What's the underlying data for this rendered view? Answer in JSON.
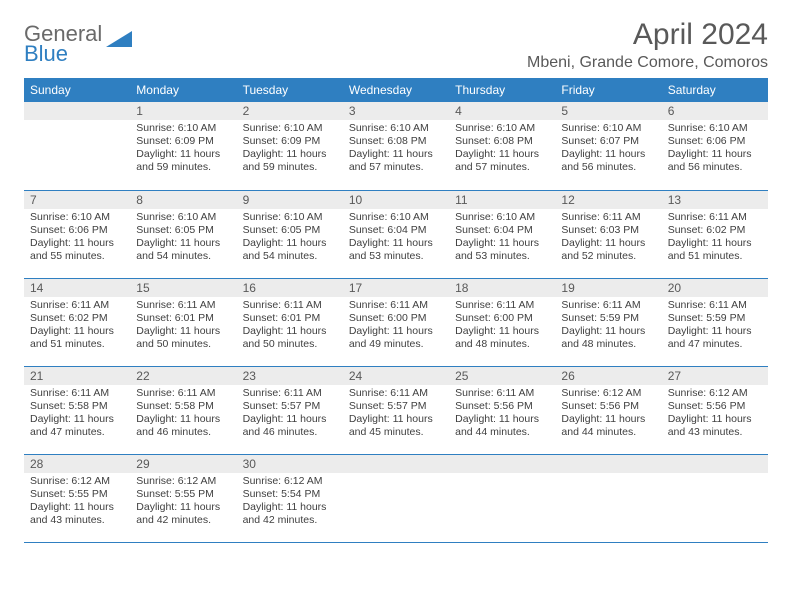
{
  "logo": {
    "word1": "General",
    "word2": "Blue"
  },
  "title": "April 2024",
  "location": "Mbeni, Grande Comore, Comoros",
  "colors": {
    "header_bg": "#2f7fc1",
    "header_fg": "#ffffff",
    "daynum_bg": "#ececec",
    "border": "#2f7fc1",
    "text": "#404040",
    "title": "#595959"
  },
  "weekdays": [
    "Sunday",
    "Monday",
    "Tuesday",
    "Wednesday",
    "Thursday",
    "Friday",
    "Saturday"
  ],
  "weeks": [
    [
      {
        "date": "",
        "lines": []
      },
      {
        "date": "1",
        "lines": [
          "Sunrise: 6:10 AM",
          "Sunset: 6:09 PM",
          "Daylight: 11 hours and 59 minutes."
        ]
      },
      {
        "date": "2",
        "lines": [
          "Sunrise: 6:10 AM",
          "Sunset: 6:09 PM",
          "Daylight: 11 hours and 59 minutes."
        ]
      },
      {
        "date": "3",
        "lines": [
          "Sunrise: 6:10 AM",
          "Sunset: 6:08 PM",
          "Daylight: 11 hours and 57 minutes."
        ]
      },
      {
        "date": "4",
        "lines": [
          "Sunrise: 6:10 AM",
          "Sunset: 6:08 PM",
          "Daylight: 11 hours and 57 minutes."
        ]
      },
      {
        "date": "5",
        "lines": [
          "Sunrise: 6:10 AM",
          "Sunset: 6:07 PM",
          "Daylight: 11 hours and 56 minutes."
        ]
      },
      {
        "date": "6",
        "lines": [
          "Sunrise: 6:10 AM",
          "Sunset: 6:06 PM",
          "Daylight: 11 hours and 56 minutes."
        ]
      }
    ],
    [
      {
        "date": "7",
        "lines": [
          "Sunrise: 6:10 AM",
          "Sunset: 6:06 PM",
          "Daylight: 11 hours and 55 minutes."
        ]
      },
      {
        "date": "8",
        "lines": [
          "Sunrise: 6:10 AM",
          "Sunset: 6:05 PM",
          "Daylight: 11 hours and 54 minutes."
        ]
      },
      {
        "date": "9",
        "lines": [
          "Sunrise: 6:10 AM",
          "Sunset: 6:05 PM",
          "Daylight: 11 hours and 54 minutes."
        ]
      },
      {
        "date": "10",
        "lines": [
          "Sunrise: 6:10 AM",
          "Sunset: 6:04 PM",
          "Daylight: 11 hours and 53 minutes."
        ]
      },
      {
        "date": "11",
        "lines": [
          "Sunrise: 6:10 AM",
          "Sunset: 6:04 PM",
          "Daylight: 11 hours and 53 minutes."
        ]
      },
      {
        "date": "12",
        "lines": [
          "Sunrise: 6:11 AM",
          "Sunset: 6:03 PM",
          "Daylight: 11 hours and 52 minutes."
        ]
      },
      {
        "date": "13",
        "lines": [
          "Sunrise: 6:11 AM",
          "Sunset: 6:02 PM",
          "Daylight: 11 hours and 51 minutes."
        ]
      }
    ],
    [
      {
        "date": "14",
        "lines": [
          "Sunrise: 6:11 AM",
          "Sunset: 6:02 PM",
          "Daylight: 11 hours and 51 minutes."
        ]
      },
      {
        "date": "15",
        "lines": [
          "Sunrise: 6:11 AM",
          "Sunset: 6:01 PM",
          "Daylight: 11 hours and 50 minutes."
        ]
      },
      {
        "date": "16",
        "lines": [
          "Sunrise: 6:11 AM",
          "Sunset: 6:01 PM",
          "Daylight: 11 hours and 50 minutes."
        ]
      },
      {
        "date": "17",
        "lines": [
          "Sunrise: 6:11 AM",
          "Sunset: 6:00 PM",
          "Daylight: 11 hours and 49 minutes."
        ]
      },
      {
        "date": "18",
        "lines": [
          "Sunrise: 6:11 AM",
          "Sunset: 6:00 PM",
          "Daylight: 11 hours and 48 minutes."
        ]
      },
      {
        "date": "19",
        "lines": [
          "Sunrise: 6:11 AM",
          "Sunset: 5:59 PM",
          "Daylight: 11 hours and 48 minutes."
        ]
      },
      {
        "date": "20",
        "lines": [
          "Sunrise: 6:11 AM",
          "Sunset: 5:59 PM",
          "Daylight: 11 hours and 47 minutes."
        ]
      }
    ],
    [
      {
        "date": "21",
        "lines": [
          "Sunrise: 6:11 AM",
          "Sunset: 5:58 PM",
          "Daylight: 11 hours and 47 minutes."
        ]
      },
      {
        "date": "22",
        "lines": [
          "Sunrise: 6:11 AM",
          "Sunset: 5:58 PM",
          "Daylight: 11 hours and 46 minutes."
        ]
      },
      {
        "date": "23",
        "lines": [
          "Sunrise: 6:11 AM",
          "Sunset: 5:57 PM",
          "Daylight: 11 hours and 46 minutes."
        ]
      },
      {
        "date": "24",
        "lines": [
          "Sunrise: 6:11 AM",
          "Sunset: 5:57 PM",
          "Daylight: 11 hours and 45 minutes."
        ]
      },
      {
        "date": "25",
        "lines": [
          "Sunrise: 6:11 AM",
          "Sunset: 5:56 PM",
          "Daylight: 11 hours and 44 minutes."
        ]
      },
      {
        "date": "26",
        "lines": [
          "Sunrise: 6:12 AM",
          "Sunset: 5:56 PM",
          "Daylight: 11 hours and 44 minutes."
        ]
      },
      {
        "date": "27",
        "lines": [
          "Sunrise: 6:12 AM",
          "Sunset: 5:56 PM",
          "Daylight: 11 hours and 43 minutes."
        ]
      }
    ],
    [
      {
        "date": "28",
        "lines": [
          "Sunrise: 6:12 AM",
          "Sunset: 5:55 PM",
          "Daylight: 11 hours and 43 minutes."
        ]
      },
      {
        "date": "29",
        "lines": [
          "Sunrise: 6:12 AM",
          "Sunset: 5:55 PM",
          "Daylight: 11 hours and 42 minutes."
        ]
      },
      {
        "date": "30",
        "lines": [
          "Sunrise: 6:12 AM",
          "Sunset: 5:54 PM",
          "Daylight: 11 hours and 42 minutes."
        ]
      },
      {
        "date": "",
        "lines": []
      },
      {
        "date": "",
        "lines": []
      },
      {
        "date": "",
        "lines": []
      },
      {
        "date": "",
        "lines": []
      }
    ]
  ]
}
